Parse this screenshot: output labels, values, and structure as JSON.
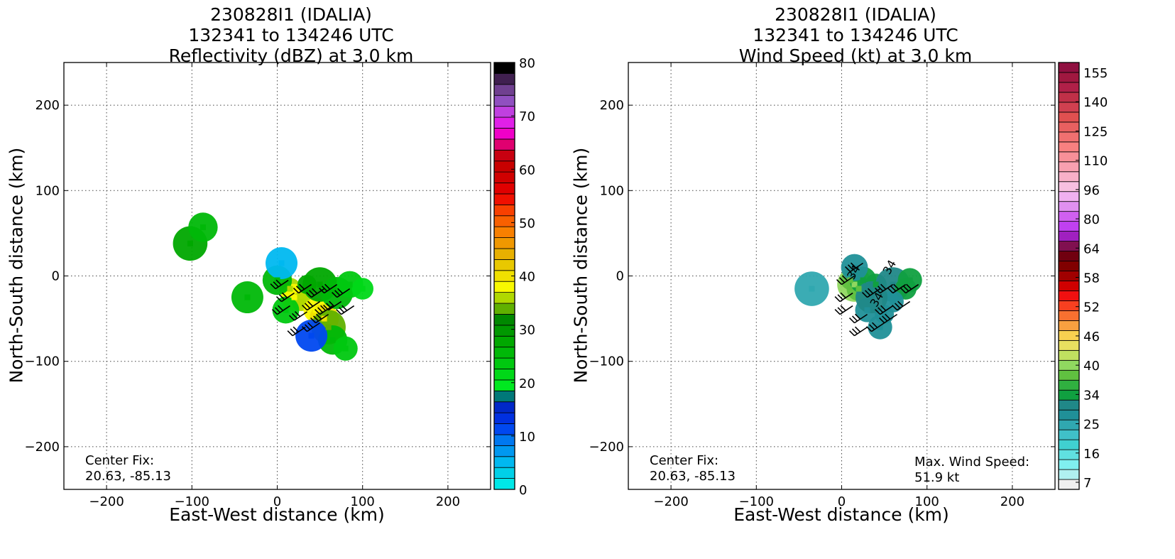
{
  "chart_data": [
    {
      "type": "heatmap",
      "title_lines": [
        "230828I1 (IDALIA)",
        "132341 to 134246 UTC",
        "Reflectivity (dBZ) at 3.0 km"
      ],
      "xlabel": "East-West distance (km)",
      "ylabel": "North-South distance (km)",
      "xlim": [
        -250,
        250
      ],
      "ylim": [
        -250,
        250
      ],
      "xticks": [
        -200,
        -100,
        0,
        100,
        200
      ],
      "yticks": [
        -200,
        -100,
        0,
        100,
        200
      ],
      "grid": true,
      "annotation_left": [
        "Center Fix:",
        "20.63, -85.13"
      ],
      "colorbar": {
        "min": 0,
        "max": 80,
        "tick_labels": [
          "0",
          "10",
          "20",
          "30",
          "40",
          "50",
          "60",
          "70",
          "80"
        ],
        "colors": [
          "#00e8e8",
          "#00d0e8",
          "#00b8f0",
          "#0098f0",
          "#0078f0",
          "#0048f0",
          "#0030e0",
          "#0028c8",
          "#007878",
          "#00e820",
          "#00d818",
          "#00c810",
          "#00b808",
          "#00a800",
          "#009800",
          "#008800",
          "#60b000",
          "#b0d800",
          "#f8f800",
          "#f0e000",
          "#e8c800",
          "#e8b000",
          "#f09800",
          "#f88000",
          "#f86000",
          "#f84000",
          "#f01000",
          "#e00000",
          "#d00000",
          "#c80000",
          "#c80010",
          "#e00070",
          "#f000c8",
          "#e020e8",
          "#c040e0",
          "#9050c0",
          "#704090",
          "#402050",
          "#000000"
        ]
      },
      "points": [
        {
          "x": 15,
          "y": -15,
          "v": 36
        },
        {
          "x": 20,
          "y": -25,
          "v": 38
        },
        {
          "x": 28,
          "y": -30,
          "v": 35
        },
        {
          "x": 45,
          "y": -40,
          "v": 37
        },
        {
          "x": 55,
          "y": -50,
          "v": 39
        },
        {
          "x": 60,
          "y": -60,
          "v": 34
        },
        {
          "x": 35,
          "y": -10,
          "v": 28
        },
        {
          "x": 50,
          "y": -10,
          "v": 27
        },
        {
          "x": 70,
          "y": -20,
          "v": 26
        },
        {
          "x": 85,
          "y": -10,
          "v": 24
        },
        {
          "x": 100,
          "y": -15,
          "v": 22
        },
        {
          "x": 65,
          "y": -75,
          "v": 25
        },
        {
          "x": 80,
          "y": -85,
          "v": 23
        },
        {
          "x": 10,
          "y": -40,
          "v": 24
        },
        {
          "x": 0,
          "y": -5,
          "v": 25
        },
        {
          "x": -35,
          "y": -25,
          "v": 26
        },
        {
          "x": -102,
          "y": 38,
          "v": 27
        },
        {
          "x": -87,
          "y": 57,
          "v": 25
        },
        {
          "x": 40,
          "y": -70,
          "v": 12
        },
        {
          "x": 5,
          "y": 15,
          "v": 5
        }
      ],
      "barbs": [
        {
          "x": -2,
          "y": -15
        },
        {
          "x": 5,
          "y": -30
        },
        {
          "x": 0,
          "y": -45
        },
        {
          "x": 20,
          "y": -52
        },
        {
          "x": 18,
          "y": -70
        },
        {
          "x": 35,
          "y": -65
        },
        {
          "x": 45,
          "y": -55
        },
        {
          "x": 25,
          "y": -20
        },
        {
          "x": 40,
          "y": -25
        },
        {
          "x": 55,
          "y": -20
        },
        {
          "x": 70,
          "y": -25
        },
        {
          "x": 60,
          "y": -40
        },
        {
          "x": 75,
          "y": -45
        },
        {
          "x": 35,
          "y": -40
        },
        {
          "x": 50,
          "y": -45
        }
      ]
    },
    {
      "type": "heatmap",
      "title_lines": [
        "230828I1 (IDALIA)",
        "132341 to 134246 UTC",
        "Wind Speed (kt) at 3.0 km"
      ],
      "xlabel": "East-West distance (km)",
      "ylabel": "North-South distance (km)",
      "xlim": [
        -250,
        250
      ],
      "ylim": [
        -250,
        250
      ],
      "xticks": [
        -200,
        -100,
        0,
        100,
        200
      ],
      "yticks": [
        -200,
        -100,
        0,
        100,
        200
      ],
      "grid": true,
      "annotation_left": [
        "Center Fix:",
        "20.63, -85.13"
      ],
      "annotation_right": [
        "Max. Wind Speed:",
        "51.9 kt"
      ],
      "contour_labels": [
        "34",
        "34",
        "34"
      ],
      "colorbar": {
        "tick_labels": [
          "7",
          "16",
          "25",
          "34",
          "40",
          "46",
          "52",
          "58",
          "64",
          "80",
          "96",
          "110",
          "125",
          "140",
          "155"
        ],
        "colors": [
          "#f0f0f0",
          "#b0f0f0",
          "#80f0f0",
          "#60e0e0",
          "#40d0d0",
          "#40c0c8",
          "#30a8b0",
          "#209098",
          "#208888",
          "#10a040",
          "#30b040",
          "#60c040",
          "#90d860",
          "#c0e060",
          "#e8e060",
          "#f8d050",
          "#f8a040",
          "#f87030",
          "#f84020",
          "#f01010",
          "#d00000",
          "#a00000",
          "#800000",
          "#700010",
          "#801050",
          "#a020c0",
          "#c040f0",
          "#d060f0",
          "#e090f0",
          "#f0b0f0",
          "#f8c0e0",
          "#f8b0c8",
          "#f8a0b0",
          "#f89098",
          "#f88080",
          "#f07070",
          "#e86060",
          "#e05050",
          "#d04050",
          "#c03048",
          "#b02048",
          "#a01840",
          "#901040"
        ]
      },
      "points": [
        {
          "x": 15,
          "y": -10,
          "v": 48
        },
        {
          "x": 20,
          "y": -15,
          "v": 44
        },
        {
          "x": 10,
          "y": -5,
          "v": 42
        },
        {
          "x": 25,
          "y": -5,
          "v": 38
        },
        {
          "x": 40,
          "y": -10,
          "v": 36
        },
        {
          "x": 60,
          "y": -10,
          "v": 34
        },
        {
          "x": 75,
          "y": -15,
          "v": 36
        },
        {
          "x": 80,
          "y": -5,
          "v": 37
        },
        {
          "x": 30,
          "y": -40,
          "v": 30
        },
        {
          "x": 50,
          "y": -45,
          "v": 28
        },
        {
          "x": 45,
          "y": -60,
          "v": 30
        },
        {
          "x": 60,
          "y": -30,
          "v": 29
        },
        {
          "x": 35,
          "y": -25,
          "v": 33
        },
        {
          "x": 15,
          "y": 10,
          "v": 31
        },
        {
          "x": -35,
          "y": -15,
          "v": 27
        }
      ],
      "barbs": [
        {
          "x": 0,
          "y": -10
        },
        {
          "x": -2,
          "y": -30
        },
        {
          "x": -2,
          "y": -45
        },
        {
          "x": 15,
          "y": -55
        },
        {
          "x": 15,
          "y": -70
        },
        {
          "x": 35,
          "y": -65
        },
        {
          "x": 50,
          "y": -55
        },
        {
          "x": 30,
          "y": -25
        },
        {
          "x": 45,
          "y": -20
        },
        {
          "x": 60,
          "y": -20
        },
        {
          "x": 75,
          "y": -20
        },
        {
          "x": 65,
          "y": -40
        },
        {
          "x": 45,
          "y": -45
        },
        {
          "x": 10,
          "y": 5
        }
      ]
    }
  ]
}
